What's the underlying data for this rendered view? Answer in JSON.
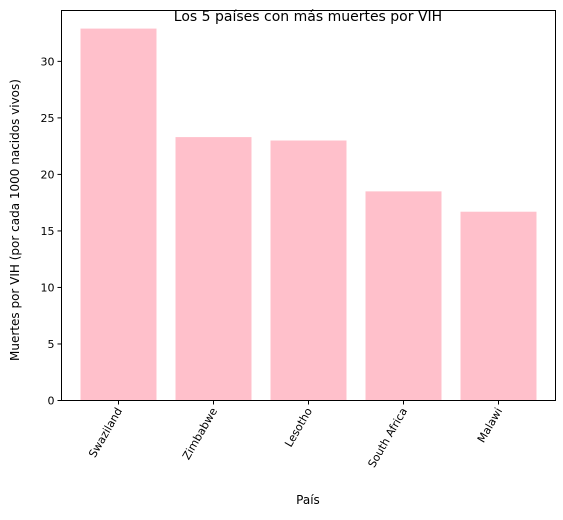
{
  "chart_data": {
    "type": "bar",
    "title": "Los 5 países con más muertes por VIH",
    "xlabel": "País",
    "ylabel": "Muertes por VIH (por cada 1000 nacidos vivos)",
    "categories": [
      "Swaziland",
      "Zimbabwe",
      "Lesotho",
      "South Africa",
      "Malawi"
    ],
    "values": [
      32.9,
      23.3,
      23.0,
      18.5,
      16.7
    ],
    "ylim": [
      0,
      34.5
    ],
    "yticks": [
      0,
      5,
      10,
      15,
      20,
      25,
      30
    ],
    "bar_color": "#ffc0cb",
    "grid": false,
    "legend": "none"
  }
}
